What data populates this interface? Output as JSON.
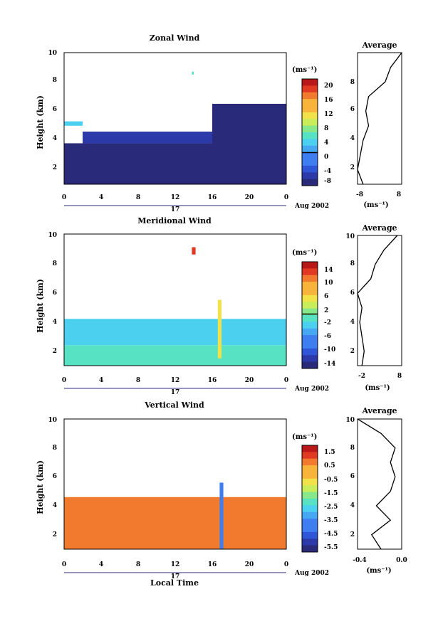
{
  "panels": [
    {
      "title": "Zonal Wind",
      "ylabel": "Height (km)",
      "yticks": [
        "2",
        "4",
        "6",
        "8",
        "10"
      ],
      "xticks": [
        "0",
        "4",
        "8",
        "12",
        "16",
        "20",
        "0"
      ],
      "day_label": "17",
      "date_label": "Aug 2002",
      "cbar_unit": "(ms⁻¹)",
      "cbar_labels": [
        "20",
        "16",
        "12",
        "8",
        "4",
        "0",
        "-4",
        "-8"
      ],
      "avg_title": "Average",
      "avg_xticks": [
        "-8",
        "8"
      ],
      "avg_yticks": [
        "2",
        "4",
        "6",
        "8"
      ],
      "avg_unit": "(ms⁻¹)"
    },
    {
      "title": "Meridional Wind",
      "ylabel": "Height (km)",
      "yticks": [
        "2",
        "4",
        "6",
        "8",
        "10"
      ],
      "xticks": [
        "0",
        "4",
        "8",
        "12",
        "16",
        "20",
        "0"
      ],
      "day_label": "17",
      "date_label": "Aug 2002",
      "cbar_unit": "(ms⁻¹)",
      "cbar_labels": [
        "14",
        "10",
        "6",
        "2",
        "-2",
        "-6",
        "-10",
        "-14"
      ],
      "avg_title": "Average",
      "avg_xticks": [
        "-2",
        "8"
      ],
      "avg_yticks": [
        "2",
        "4",
        "6",
        "8",
        "10"
      ],
      "avg_unit": "(ms⁻¹)"
    },
    {
      "title": "Vertical Wind",
      "ylabel": "Height (km)",
      "yticks": [
        "2",
        "4",
        "6",
        "8",
        "10"
      ],
      "xticks": [
        "0",
        "4",
        "8",
        "12",
        "16",
        "20",
        "0"
      ],
      "day_label": "17",
      "date_label": "Aug 2002",
      "cbar_unit": "(ms⁻¹)",
      "cbar_labels": [
        "1.5",
        "0.5",
        "-0.5",
        "-1.5",
        "-2.5",
        "-3.5",
        "-4.5",
        "-5.5"
      ],
      "avg_title": "Average",
      "avg_xticks": [
        "-0.4",
        "0.0"
      ],
      "avg_yticks": [
        "2",
        "4",
        "6",
        "8",
        "10"
      ],
      "avg_unit": "(ms⁻¹)"
    }
  ],
  "xlabel": "Local Time",
  "chart_data": [
    {
      "type": "heatmap",
      "title": "Zonal Wind",
      "xlabel": "",
      "ylabel": "Height (km)",
      "xlim": [
        0,
        24
      ],
      "ylim": [
        1,
        10
      ],
      "colorbar_range": [
        -10,
        22
      ],
      "fields": [
        {
          "t0": 0,
          "t1": 24,
          "h0": 1,
          "h1": 3.8,
          "value": -8
        },
        {
          "t0": 2,
          "t1": 16,
          "h0": 3.8,
          "h1": 4.6,
          "value": -6
        },
        {
          "t0": 16,
          "t1": 24,
          "h0": 1,
          "h1": 6.5,
          "value": -9
        },
        {
          "t0": 0,
          "t1": 2,
          "h0": 5,
          "h1": 5.3,
          "value": 3
        },
        {
          "t0": 13.8,
          "t1": 14.0,
          "h0": 8.5,
          "h1": 8.7,
          "value": 4
        }
      ],
      "average_profile": {
        "xlim": [
          -8,
          8
        ],
        "height": [
          1,
          2,
          3,
          4,
          5,
          6,
          7,
          8,
          9,
          9.5,
          10
        ],
        "value": [
          -6,
          -8,
          -7,
          -6,
          -4,
          -5,
          -4,
          2,
          4,
          6,
          8
        ]
      }
    },
    {
      "type": "heatmap",
      "title": "Meridional Wind",
      "xlabel": "",
      "ylabel": "Height (km)",
      "xlim": [
        0,
        24
      ],
      "ylim": [
        1,
        10
      ],
      "colorbar_range": [
        -16,
        16
      ],
      "fields": [
        {
          "t0": 0,
          "t1": 24,
          "h0": 1,
          "h1": 2.4,
          "value": -2
        },
        {
          "t0": 0,
          "t1": 24,
          "h0": 2.4,
          "h1": 4.2,
          "value": -3
        },
        {
          "t0": 16.6,
          "t1": 17.0,
          "h0": 1.5,
          "h1": 5.5,
          "value": 6
        },
        {
          "t0": 13.8,
          "t1": 14.2,
          "h0": 8.6,
          "h1": 9.1,
          "value": 12
        }
      ],
      "average_profile": {
        "xlim": [
          -2,
          8
        ],
        "height": [
          1,
          2,
          3,
          4,
          5,
          6,
          7,
          8,
          9,
          10
        ],
        "value": [
          -1,
          -0.5,
          -1,
          -1.5,
          -1,
          -2,
          1,
          2,
          4,
          7
        ]
      }
    },
    {
      "type": "heatmap",
      "title": "Vertical Wind",
      "xlabel": "Local Time",
      "ylabel": "Height (km)",
      "xlim": [
        0,
        24
      ],
      "ylim": [
        1,
        10
      ],
      "colorbar_range": [
        -6.5,
        2
      ],
      "fields": [
        {
          "t0": 0,
          "t1": 24,
          "h0": 1,
          "h1": 4.6,
          "value": 0.3
        },
        {
          "t0": 16.8,
          "t1": 17.2,
          "h0": 1,
          "h1": 5.6,
          "value": -4.5
        }
      ],
      "average_profile": {
        "xlim": [
          -0.45,
          0.02
        ],
        "height": [
          1,
          2,
          3,
          4,
          5,
          6,
          7,
          8,
          9,
          10
        ],
        "value": [
          -0.2,
          -0.3,
          -0.1,
          -0.25,
          -0.1,
          -0.05,
          -0.1,
          -0.05,
          -0.2,
          -0.45
        ]
      }
    }
  ]
}
